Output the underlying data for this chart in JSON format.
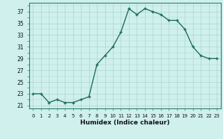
{
  "x": [
    0,
    1,
    2,
    3,
    4,
    5,
    6,
    7,
    8,
    9,
    10,
    11,
    12,
    13,
    14,
    15,
    16,
    17,
    18,
    19,
    20,
    21,
    22,
    23
  ],
  "y": [
    23.0,
    23.0,
    21.5,
    22.0,
    21.5,
    21.5,
    22.0,
    22.5,
    28.0,
    29.5,
    31.0,
    33.5,
    37.5,
    36.5,
    37.5,
    37.0,
    36.5,
    35.5,
    35.5,
    34.0,
    31.0,
    29.5,
    29.0,
    29.0
  ],
  "line_color": "#1a6b5a",
  "marker": "+",
  "bg_color": "#cff0ec",
  "grid_color_major": "#aad4cc",
  "xlabel": "Humidex (Indice chaleur)",
  "xlim": [
    -0.5,
    23.5
  ],
  "ylim": [
    20.5,
    38.5
  ],
  "yticks": [
    21,
    23,
    25,
    27,
    29,
    31,
    33,
    35,
    37
  ],
  "xticks": [
    0,
    1,
    2,
    3,
    4,
    5,
    6,
    7,
    8,
    9,
    10,
    11,
    12,
    13,
    14,
    15,
    16,
    17,
    18,
    19,
    20,
    21,
    22,
    23
  ],
  "xtick_labels": [
    "0",
    "1",
    "2",
    "3",
    "4",
    "5",
    "6",
    "7",
    "8",
    "9",
    "10",
    "11",
    "12",
    "13",
    "14",
    "15",
    "16",
    "17",
    "18",
    "19",
    "20",
    "21",
    "22",
    "23"
  ],
  "font_color": "#111111",
  "spine_color": "#2a7a6a",
  "line_width": 1.0,
  "marker_size": 3.5,
  "marker_ew": 1.0
}
